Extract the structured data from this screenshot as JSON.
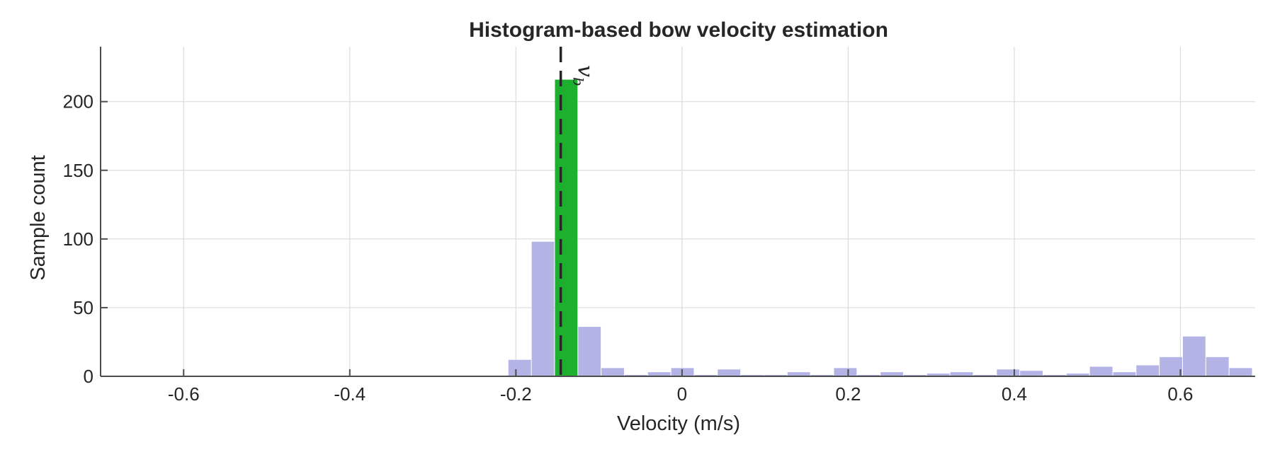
{
  "chart_data": {
    "type": "bar",
    "title": "Histogram-based bow velocity estimation",
    "xlabel": "Velocity (m/s)",
    "ylabel": "Sample count",
    "xlim": [
      -0.7,
      0.69
    ],
    "ylim": [
      0,
      240
    ],
    "xticks": [
      -0.6,
      -0.4,
      -0.2,
      0,
      0.2,
      0.4,
      0.6
    ],
    "xtick_labels": [
      "-0.6",
      "-0.4",
      "-0.2",
      "0",
      "0.2",
      "0.4",
      "0.6"
    ],
    "yticks": [
      0,
      50,
      100,
      150,
      200
    ],
    "ytick_labels": [
      "0",
      "50",
      "100",
      "150",
      "200"
    ],
    "grid": true,
    "bin_width": 0.028,
    "bins": [
      {
        "x": -0.195,
        "count": 12
      },
      {
        "x": -0.167,
        "count": 98
      },
      {
        "x": -0.139,
        "count": 216,
        "highlight": true
      },
      {
        "x": -0.111,
        "count": 36
      },
      {
        "x": -0.083,
        "count": 6
      },
      {
        "x": -0.055,
        "count": 1
      },
      {
        "x": -0.027,
        "count": 3
      },
      {
        "x": 0.001,
        "count": 6
      },
      {
        "x": 0.029,
        "count": 1
      },
      {
        "x": 0.057,
        "count": 5
      },
      {
        "x": 0.085,
        "count": 1
      },
      {
        "x": 0.113,
        "count": 1
      },
      {
        "x": 0.141,
        "count": 3
      },
      {
        "x": 0.169,
        "count": 1
      },
      {
        "x": 0.197,
        "count": 6
      },
      {
        "x": 0.225,
        "count": 1
      },
      {
        "x": 0.253,
        "count": 3
      },
      {
        "x": 0.281,
        "count": 1
      },
      {
        "x": 0.309,
        "count": 2
      },
      {
        "x": 0.337,
        "count": 3
      },
      {
        "x": 0.365,
        "count": 1
      },
      {
        "x": 0.393,
        "count": 5
      },
      {
        "x": 0.421,
        "count": 4
      },
      {
        "x": 0.449,
        "count": 1
      },
      {
        "x": 0.477,
        "count": 2
      },
      {
        "x": 0.505,
        "count": 7
      },
      {
        "x": 0.533,
        "count": 3
      },
      {
        "x": 0.561,
        "count": 8
      },
      {
        "x": 0.589,
        "count": 14
      },
      {
        "x": 0.617,
        "count": 29
      },
      {
        "x": 0.645,
        "count": 14
      },
      {
        "x": 0.673,
        "count": 6
      }
    ],
    "bow_velocity": -0.146,
    "annotation": {
      "base": "v",
      "sub": "b"
    },
    "colors": {
      "bar": "#b3b3e6",
      "highlight": "#1cb02e",
      "grid": "#dcdcdc",
      "axis": "#4d4d4d",
      "marker": "#262626"
    }
  }
}
